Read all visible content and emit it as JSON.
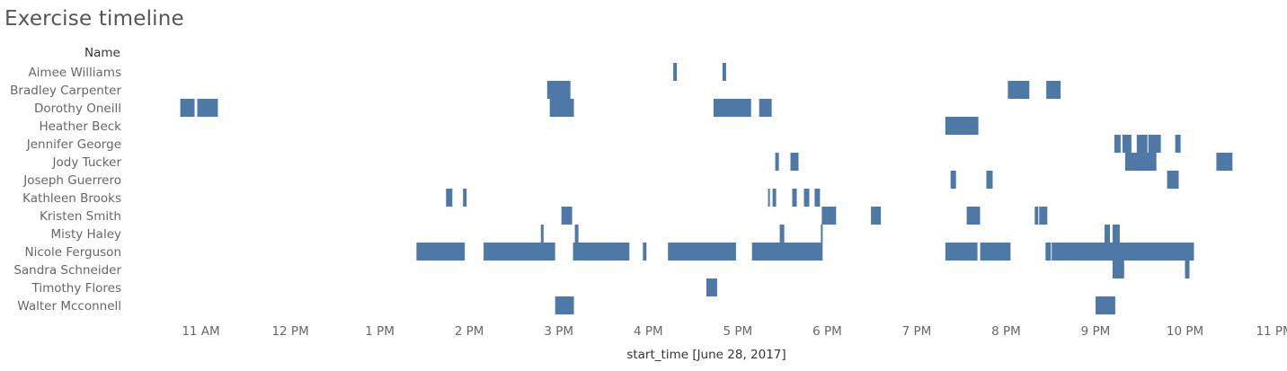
{
  "chart_data": {
    "type": "bar",
    "title": "Exercise timeline",
    "row_header": "Name",
    "xlabel": "start_time [June 28, 2017]",
    "x_unit": "hour of day",
    "xlim": [
      10.3,
      11.05
    ],
    "x_ticks": [
      {
        "value": 11,
        "label": "11 AM"
      },
      {
        "value": 12,
        "label": "12 PM"
      },
      {
        "value": 13,
        "label": "1 PM"
      },
      {
        "value": 14,
        "label": "2 PM"
      },
      {
        "value": 15,
        "label": "3 PM"
      },
      {
        "value": 16,
        "label": "4 PM"
      },
      {
        "value": 17,
        "label": "5 PM"
      },
      {
        "value": 18,
        "label": "6 PM"
      },
      {
        "value": 19,
        "label": "7 PM"
      },
      {
        "value": 20,
        "label": "8 PM"
      },
      {
        "value": 21,
        "label": "9 PM"
      },
      {
        "value": 22,
        "label": "10 PM"
      },
      {
        "value": 23,
        "label": "11 PM"
      }
    ],
    "categories": [
      "Aimee Williams",
      "Bradley Carpenter",
      "Dorothy Oneill",
      "Heather Beck",
      "Jennifer George",
      "Jody Tucker",
      "Joseph Guerrero",
      "Kathleen Brooks",
      "Kristen Smith",
      "Misty Haley",
      "Nicole Ferguson",
      "Sandra Schneider",
      "Timothy Flores",
      "Walter Mcconnell"
    ],
    "bar_color": "#4E79A7",
    "segments": [
      {
        "name": "Aimee Williams",
        "start": 16.28,
        "end": 16.32
      },
      {
        "name": "Aimee Williams",
        "start": 16.83,
        "end": 16.87
      },
      {
        "name": "Bradley Carpenter",
        "start": 14.87,
        "end": 15.13
      },
      {
        "name": "Bradley Carpenter",
        "start": 20.02,
        "end": 20.26
      },
      {
        "name": "Bradley Carpenter",
        "start": 20.45,
        "end": 20.61
      },
      {
        "name": "Dorothy Oneill",
        "start": 10.77,
        "end": 10.93
      },
      {
        "name": "Dorothy Oneill",
        "start": 10.96,
        "end": 11.19
      },
      {
        "name": "Dorothy Oneill",
        "start": 14.9,
        "end": 15.17
      },
      {
        "name": "Dorothy Oneill",
        "start": 16.73,
        "end": 17.15
      },
      {
        "name": "Dorothy Oneill",
        "start": 17.24,
        "end": 17.38
      },
      {
        "name": "Heather Beck",
        "start": 19.32,
        "end": 19.69
      },
      {
        "name": "Jennifer George",
        "start": 21.21,
        "end": 21.28
      },
      {
        "name": "Jennifer George",
        "start": 21.3,
        "end": 21.4
      },
      {
        "name": "Jennifer George",
        "start": 21.46,
        "end": 21.58
      },
      {
        "name": "Jennifer George",
        "start": 21.59,
        "end": 21.73
      },
      {
        "name": "Jennifer George",
        "start": 21.89,
        "end": 21.95
      },
      {
        "name": "Jody Tucker",
        "start": 17.42,
        "end": 17.46
      },
      {
        "name": "Jody Tucker",
        "start": 17.59,
        "end": 17.68
      },
      {
        "name": "Jody Tucker",
        "start": 21.33,
        "end": 21.68
      },
      {
        "name": "Jody Tucker",
        "start": 22.35,
        "end": 22.53
      },
      {
        "name": "Joseph Guerrero",
        "start": 19.38,
        "end": 19.44
      },
      {
        "name": "Joseph Guerrero",
        "start": 19.78,
        "end": 19.85
      },
      {
        "name": "Joseph Guerrero",
        "start": 21.8,
        "end": 21.93
      },
      {
        "name": "Kathleen Brooks",
        "start": 13.74,
        "end": 13.81
      },
      {
        "name": "Kathleen Brooks",
        "start": 13.93,
        "end": 13.97
      },
      {
        "name": "Kathleen Brooks",
        "start": 17.34,
        "end": 17.36
      },
      {
        "name": "Kathleen Brooks",
        "start": 17.39,
        "end": 17.43
      },
      {
        "name": "Kathleen Brooks",
        "start": 17.61,
        "end": 17.66
      },
      {
        "name": "Kathleen Brooks",
        "start": 17.74,
        "end": 17.8
      },
      {
        "name": "Kathleen Brooks",
        "start": 17.86,
        "end": 17.92
      },
      {
        "name": "Kristen Smith",
        "start": 15.03,
        "end": 15.15
      },
      {
        "name": "Kristen Smith",
        "start": 17.94,
        "end": 18.1
      },
      {
        "name": "Kristen Smith",
        "start": 18.49,
        "end": 18.6
      },
      {
        "name": "Kristen Smith",
        "start": 19.56,
        "end": 19.71
      },
      {
        "name": "Kristen Smith",
        "start": 20.32,
        "end": 20.36
      },
      {
        "name": "Kristen Smith",
        "start": 20.37,
        "end": 20.46
      },
      {
        "name": "Misty Haley",
        "start": 14.8,
        "end": 14.83
      },
      {
        "name": "Misty Haley",
        "start": 15.18,
        "end": 15.22
      },
      {
        "name": "Misty Haley",
        "start": 17.47,
        "end": 17.52
      },
      {
        "name": "Misty Haley",
        "start": 17.93,
        "end": 17.95
      },
      {
        "name": "Misty Haley",
        "start": 21.1,
        "end": 21.16
      },
      {
        "name": "Misty Haley",
        "start": 21.19,
        "end": 21.27
      },
      {
        "name": "Nicole Ferguson",
        "start": 13.41,
        "end": 13.95
      },
      {
        "name": "Nicole Ferguson",
        "start": 14.16,
        "end": 14.96
      },
      {
        "name": "Nicole Ferguson",
        "start": 15.16,
        "end": 15.79
      },
      {
        "name": "Nicole Ferguson",
        "start": 15.94,
        "end": 15.98
      },
      {
        "name": "Nicole Ferguson",
        "start": 16.22,
        "end": 16.98
      },
      {
        "name": "Nicole Ferguson",
        "start": 17.16,
        "end": 17.95
      },
      {
        "name": "Nicole Ferguson",
        "start": 19.32,
        "end": 19.68
      },
      {
        "name": "Nicole Ferguson",
        "start": 19.71,
        "end": 20.05
      },
      {
        "name": "Nicole Ferguson",
        "start": 20.44,
        "end": 20.5
      },
      {
        "name": "Nicole Ferguson",
        "start": 20.51,
        "end": 22.1
      },
      {
        "name": "Sandra Schneider",
        "start": 21.19,
        "end": 21.32
      },
      {
        "name": "Sandra Schneider",
        "start": 22.0,
        "end": 22.05
      },
      {
        "name": "Timothy Flores",
        "start": 16.65,
        "end": 16.77
      },
      {
        "name": "Walter Mcconnell",
        "start": 14.96,
        "end": 15.17
      },
      {
        "name": "Walter Mcconnell",
        "start": 21.0,
        "end": 21.22
      }
    ]
  }
}
